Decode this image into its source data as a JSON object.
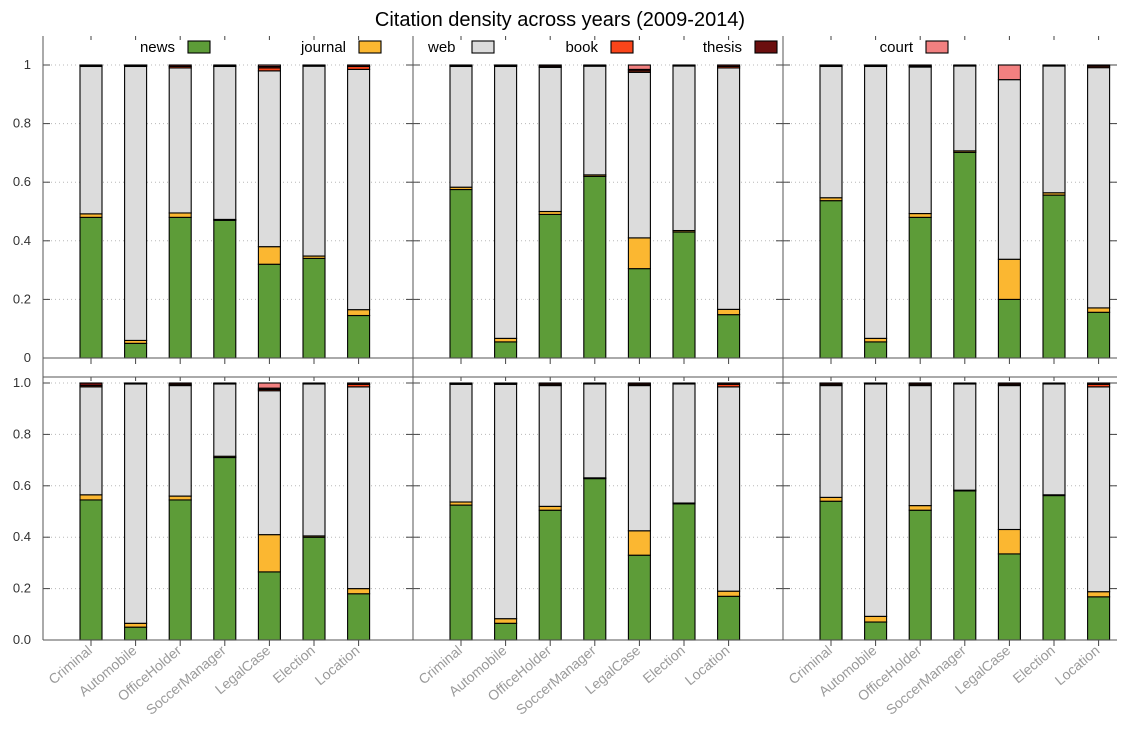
{
  "chart_data": {
    "type": "bar",
    "stacked": true,
    "title": "Citation density across years (2009-2014)",
    "grid": true,
    "legend_placement": "top",
    "categories": [
      "Criminal",
      "Automobile",
      "OfficeHolder",
      "SoccerManager",
      "LegalCase",
      "Election",
      "Location"
    ],
    "series": [
      {
        "name": "news",
        "color": "#5d9c38"
      },
      {
        "name": "journal",
        "color": "#fbb731"
      },
      {
        "name": "web",
        "color": "#dcdcdc"
      },
      {
        "name": "book",
        "color": "#fa451a"
      },
      {
        "name": "thesis",
        "color": "#6b0f0f"
      },
      {
        "name": "court",
        "color": "#f28080"
      }
    ],
    "panels": [
      {
        "yticks": [
          "0",
          "0.2",
          "0.4",
          "0.6",
          "0.8",
          "1"
        ],
        "ylim": [
          0,
          1
        ],
        "stacks": [
          [
            0.48,
            0.012,
            0.503,
            0.003,
            0.002,
            0
          ],
          [
            0.05,
            0.01,
            0.935,
            0.002,
            0.003,
            0
          ],
          [
            0.48,
            0.015,
            0.495,
            0.005,
            0.005,
            0
          ],
          [
            0.47,
            0.003,
            0.522,
            0.002,
            0.003,
            0
          ],
          [
            0.32,
            0.06,
            0.6,
            0.01,
            0.005,
            0.005
          ],
          [
            0.34,
            0.008,
            0.648,
            0.002,
            0.002,
            0
          ],
          [
            0.145,
            0.02,
            0.82,
            0.01,
            0.005,
            0
          ]
        ]
      },
      {
        "yticks": [],
        "ylim": [
          0,
          1
        ],
        "stacks": [
          [
            0.575,
            0.008,
            0.412,
            0.002,
            0.003,
            0
          ],
          [
            0.055,
            0.012,
            0.928,
            0.002,
            0.003,
            0
          ],
          [
            0.49,
            0.01,
            0.492,
            0.004,
            0.004,
            0
          ],
          [
            0.62,
            0.005,
            0.371,
            0.002,
            0.002,
            0
          ],
          [
            0.305,
            0.105,
            0.565,
            0.005,
            0.005,
            0.015
          ],
          [
            0.43,
            0.005,
            0.562,
            0.001,
            0.002,
            0
          ],
          [
            0.148,
            0.018,
            0.824,
            0.005,
            0.005,
            0
          ]
        ]
      },
      {
        "yticks": [],
        "ylim": [
          0,
          1
        ],
        "stacks": [
          [
            0.537,
            0.01,
            0.448,
            0.002,
            0.003,
            0
          ],
          [
            0.055,
            0.012,
            0.928,
            0.002,
            0.003,
            0
          ],
          [
            0.48,
            0.013,
            0.5,
            0.003,
            0.004,
            0
          ],
          [
            0.702,
            0.005,
            0.29,
            0.001,
            0.002,
            0
          ],
          [
            0.2,
            0.137,
            0.613,
            0,
            0,
            0.05
          ],
          [
            0.556,
            0.008,
            0.433,
            0.001,
            0.002,
            0
          ],
          [
            0.156,
            0.015,
            0.82,
            0.005,
            0.004,
            0
          ]
        ]
      },
      {
        "yticks": [
          "0.0",
          "0.2",
          "0.4",
          "0.6",
          "0.8",
          "1.0"
        ],
        "ylim": [
          0,
          1
        ],
        "stacks": [
          [
            0.545,
            0.02,
            0.42,
            0.005,
            0.01,
            0
          ],
          [
            0.05,
            0.015,
            0.932,
            0.001,
            0.002,
            0
          ],
          [
            0.545,
            0.015,
            0.43,
            0.005,
            0.005,
            0
          ],
          [
            0.71,
            0.005,
            0.282,
            0.001,
            0.002,
            0
          ],
          [
            0.265,
            0.145,
            0.56,
            0.005,
            0.005,
            0.02
          ],
          [
            0.4,
            0.005,
            0.592,
            0.001,
            0.002,
            0
          ],
          [
            0.18,
            0.02,
            0.785,
            0.01,
            0.005,
            0
          ]
        ]
      },
      {
        "yticks": [],
        "ylim": [
          0,
          1
        ],
        "stacks": [
          [
            0.525,
            0.012,
            0.458,
            0.002,
            0.003,
            0
          ],
          [
            0.065,
            0.018,
            0.912,
            0.002,
            0.003,
            0
          ],
          [
            0.505,
            0.015,
            0.47,
            0.005,
            0.005,
            0
          ],
          [
            0.628,
            0.003,
            0.366,
            0.001,
            0.002,
            0
          ],
          [
            0.33,
            0.095,
            0.565,
            0.005,
            0.005,
            0
          ],
          [
            0.53,
            0.003,
            0.464,
            0.001,
            0.002,
            0
          ],
          [
            0.17,
            0.02,
            0.795,
            0.01,
            0.005,
            0
          ]
        ]
      },
      {
        "yticks": [],
        "ylim": [
          0,
          1
        ],
        "stacks": [
          [
            0.54,
            0.015,
            0.435,
            0.005,
            0.005,
            0
          ],
          [
            0.07,
            0.022,
            0.905,
            0.001,
            0.002,
            0
          ],
          [
            0.505,
            0.018,
            0.467,
            0.005,
            0.005,
            0
          ],
          [
            0.58,
            0.003,
            0.414,
            0.001,
            0.002,
            0
          ],
          [
            0.335,
            0.095,
            0.56,
            0.005,
            0.005,
            0
          ],
          [
            0.562,
            0.003,
            0.432,
            0.001,
            0.002,
            0
          ],
          [
            0.168,
            0.02,
            0.797,
            0.01,
            0.005,
            0
          ]
        ]
      }
    ]
  }
}
